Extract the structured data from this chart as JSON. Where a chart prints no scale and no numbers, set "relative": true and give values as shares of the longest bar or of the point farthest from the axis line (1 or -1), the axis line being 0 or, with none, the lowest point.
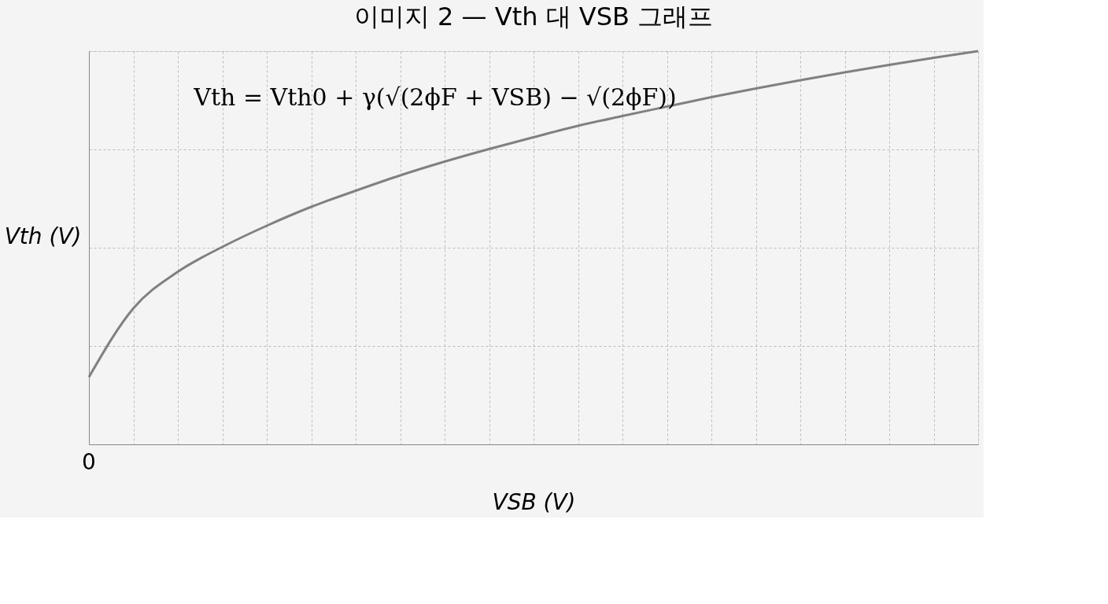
{
  "chart_data": {
    "type": "line",
    "title": "이미지 2 — Vth 대 VSB 그래프",
    "xlabel": "VSB (V)",
    "ylabel": "Vth (V)",
    "categories": [
      null,
      null,
      null,
      null,
      null,
      null,
      null,
      null,
      null,
      null,
      null,
      null,
      null,
      null,
      null,
      null,
      null,
      null,
      null,
      null,
      null
    ],
    "series": [
      {
        "color": "#808080",
        "values": [
          0.171,
          0.346,
          0.439,
          0.502,
          0.556,
          0.604,
          0.645,
          0.684,
          0.719,
          0.751,
          0.781,
          0.81,
          0.835,
          0.859,
          0.883,
          0.905,
          0.926,
          0.946,
          0.965,
          0.983,
          1.0
        ]
      }
    ],
    "relative": true,
    "grid": true,
    "tick_labels": "x",
    "marker": "none",
    "line_style": "solid",
    "annotations": [
      "Vth = Vth0 + γ(√(2ϕF + VSB) − √(2ϕF))",
      "0"
    ]
  }
}
